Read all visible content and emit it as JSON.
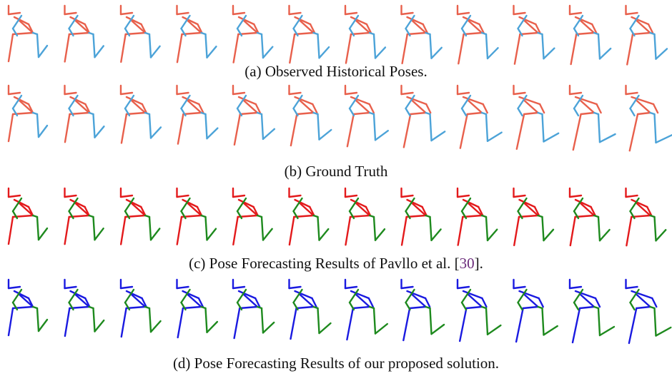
{
  "captions": {
    "a": "(a) Observed Historical Poses.",
    "b": "(b) Ground Truth",
    "c": {
      "prefix": "(c) Pose Forecasting Results of Pavllo et al. [",
      "citation": "30",
      "suffix": "]."
    },
    "d": "(d) Pose Forecasting Results of our proposed solution."
  }
}
